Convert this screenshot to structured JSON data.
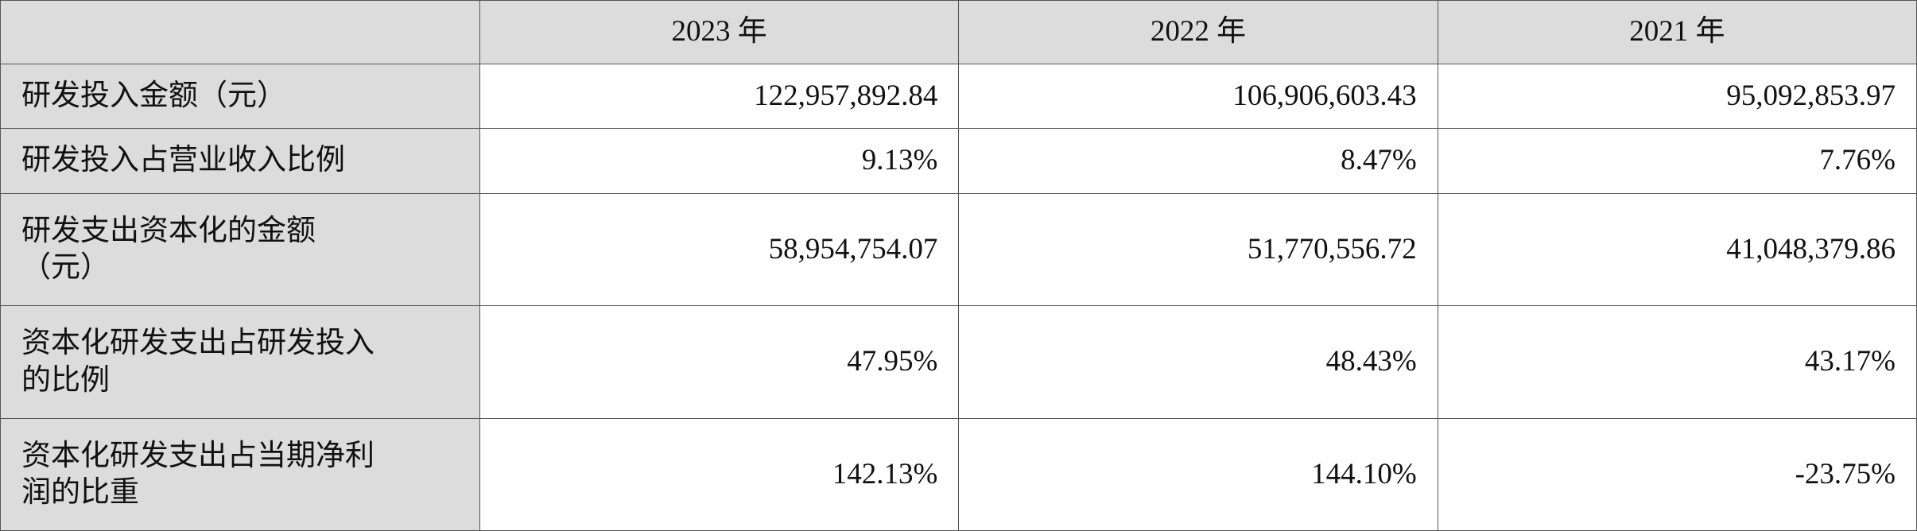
{
  "table": {
    "header": [
      "2023 年",
      "2022 年",
      "2021 年"
    ],
    "rows": [
      [
        "研发投入金额（元）",
        "122,957,892.84",
        "106,906,603.43",
        "95,092,853.97"
      ],
      [
        "研发投入占营业收入比例",
        "9.13%",
        "8.47%",
        "7.76%"
      ],
      [
        "研发支出资本化的金额（元）",
        "58,954,754.07",
        "51,770,556.72",
        "41,048,379.86"
      ],
      [
        "资本化研发支出占研发投入的比例",
        "47.95%",
        "48.43%",
        "43.17%"
      ],
      [
        "资本化研发支出占当期净利润的比重",
        "142.13%",
        "144.10%",
        "-23.75%"
      ]
    ]
  }
}
